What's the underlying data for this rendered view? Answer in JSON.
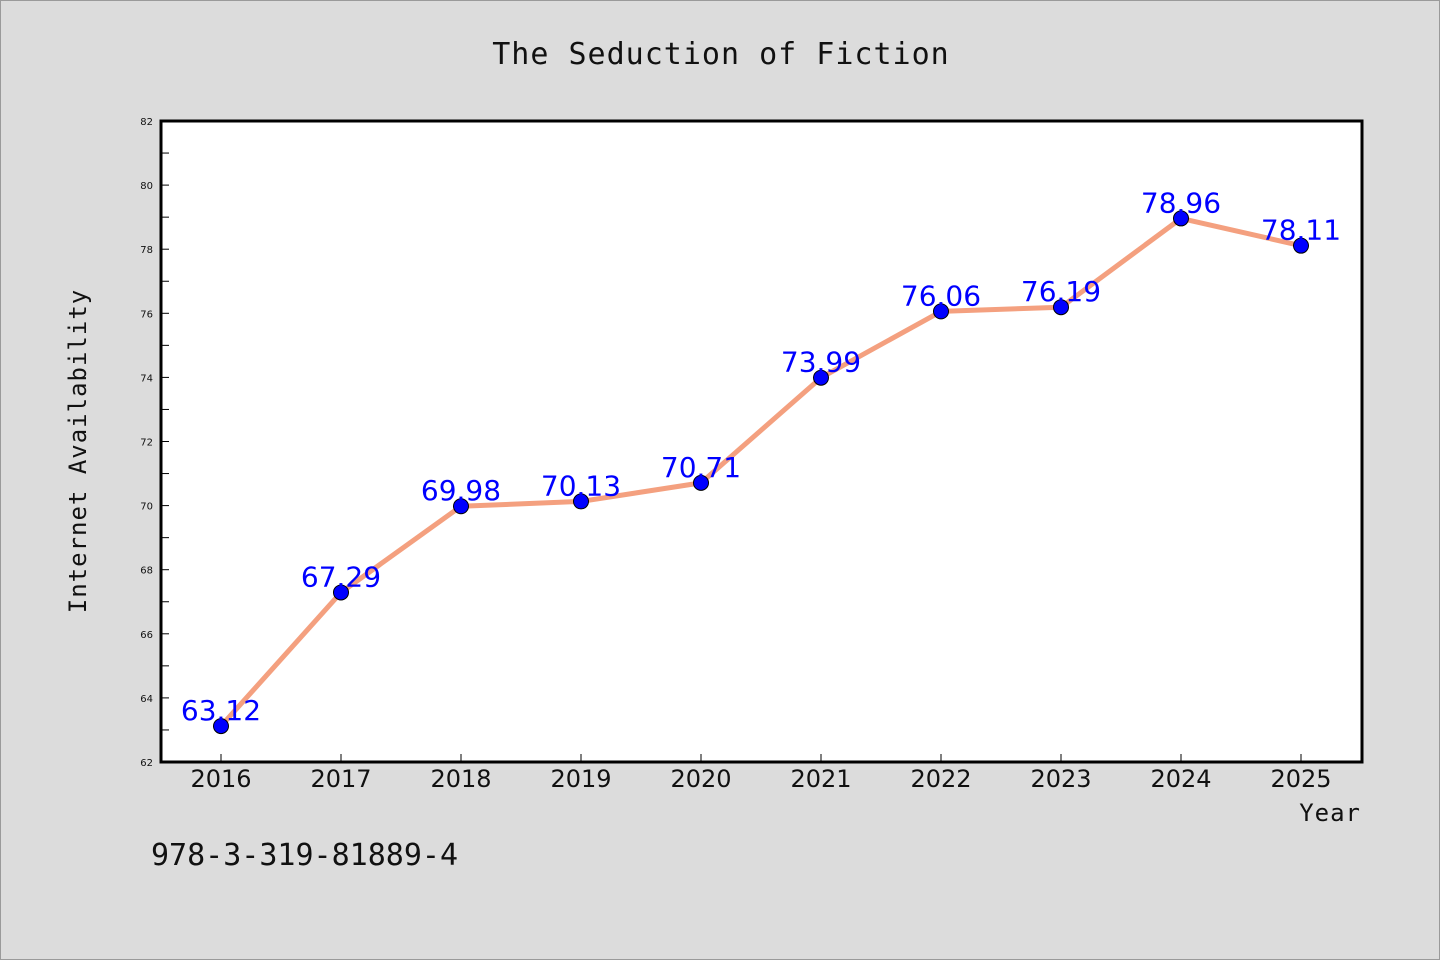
{
  "chart_data": {
    "type": "line",
    "title": "The Seduction of Fiction",
    "xlabel": "Year",
    "ylabel": "Internet Availability",
    "x": [
      "2016",
      "2017",
      "2018",
      "2019",
      "2020",
      "2021",
      "2022",
      "2023",
      "2024",
      "2025"
    ],
    "values": [
      63.12,
      67.29,
      69.98,
      70.13,
      70.71,
      73.99,
      76.06,
      76.19,
      78.96,
      78.11
    ],
    "data_labels": [
      "63.12",
      "67.29",
      "69.98",
      "70.13",
      "70.71",
      "73.99",
      "76.06",
      "76.19",
      "78.96",
      "78.11"
    ],
    "ylim": [
      62,
      82
    ],
    "yticks": [
      "62",
      "64",
      "66",
      "68",
      "70",
      "72",
      "74",
      "76",
      "78",
      "80",
      "82"
    ],
    "grid": false,
    "line_color": "#f4a07f",
    "marker_color": "#0000ff",
    "label_color": "#0000ff"
  },
  "footer_text": "978-3-319-81889-4"
}
